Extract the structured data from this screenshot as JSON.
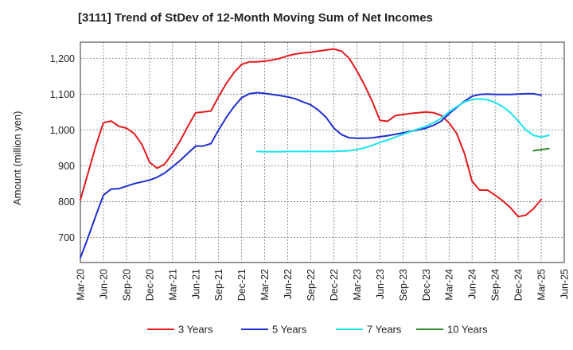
{
  "chart_data": {
    "type": "line",
    "title": "[3111]  Trend of StDev of 12-Month Moving Sum of Net Incomes",
    "ylabel": "Amount (million yen)",
    "xlabel": "",
    "ylim": [
      630,
      1245
    ],
    "yticks": [
      700,
      800,
      900,
      1000,
      1100,
      1200
    ],
    "ytick_labels": [
      "700",
      "800",
      "900",
      "1,000",
      "1,100",
      "1,200"
    ],
    "xticks": [
      "Mar-20",
      "Jun-20",
      "Sep-20",
      "Dec-20",
      "Mar-21",
      "Jun-21",
      "Sep-21",
      "Dec-21",
      "Mar-22",
      "Jun-22",
      "Sep-22",
      "Dec-22",
      "Mar-23",
      "Jun-23",
      "Sep-23",
      "Dec-23",
      "Mar-24",
      "Jun-24",
      "Sep-24",
      "Dec-24",
      "Mar-25",
      "Jun-25"
    ],
    "x_range": [
      "Mar-20",
      "Jun-25"
    ],
    "grid": true,
    "legend_position": "bottom",
    "series": [
      {
        "name": "3 Years",
        "color": "#e31a1c",
        "points": [
          [
            "Mar-20",
            805
          ],
          [
            "Apr-20",
            880
          ],
          [
            "May-20",
            955
          ],
          [
            "Jun-20",
            1020
          ],
          [
            "Jul-20",
            1025
          ],
          [
            "Aug-20",
            1010
          ],
          [
            "Sep-20",
            1005
          ],
          [
            "Oct-20",
            990
          ],
          [
            "Nov-20",
            960
          ],
          [
            "Dec-20",
            910
          ],
          [
            "Jan-21",
            893
          ],
          [
            "Feb-21",
            905
          ],
          [
            "Mar-21",
            935
          ],
          [
            "Apr-21",
            970
          ],
          [
            "May-21",
            1010
          ],
          [
            "Jun-21",
            1048
          ],
          [
            "Jul-21",
            1050
          ],
          [
            "Aug-21",
            1053
          ],
          [
            "Sep-21",
            1093
          ],
          [
            "Oct-21",
            1130
          ],
          [
            "Nov-21",
            1160
          ],
          [
            "Dec-21",
            1183
          ],
          [
            "Jan-22",
            1190
          ],
          [
            "Feb-22",
            1190
          ],
          [
            "Mar-22",
            1192
          ],
          [
            "Apr-22",
            1195
          ],
          [
            "May-22",
            1200
          ],
          [
            "Jun-22",
            1207
          ],
          [
            "Jul-22",
            1212
          ],
          [
            "Aug-22",
            1215
          ],
          [
            "Sep-22",
            1217
          ],
          [
            "Oct-22",
            1220
          ],
          [
            "Nov-22",
            1223
          ],
          [
            "Dec-22",
            1226
          ],
          [
            "Jan-23",
            1220
          ],
          [
            "Feb-23",
            1200
          ],
          [
            "Mar-23",
            1165
          ],
          [
            "Apr-23",
            1125
          ],
          [
            "May-23",
            1080
          ],
          [
            "Jun-23",
            1027
          ],
          [
            "Jul-23",
            1024
          ],
          [
            "Aug-23",
            1040
          ],
          [
            "Sep-23",
            1043
          ],
          [
            "Oct-23",
            1046
          ],
          [
            "Nov-23",
            1048
          ],
          [
            "Dec-23",
            1050
          ],
          [
            "Jan-24",
            1048
          ],
          [
            "Feb-24",
            1040
          ],
          [
            "Mar-24",
            1020
          ],
          [
            "Apr-24",
            990
          ],
          [
            "May-24",
            935
          ],
          [
            "Jun-24",
            857
          ],
          [
            "Jul-24",
            832
          ],
          [
            "Aug-24",
            832
          ],
          [
            "Sep-24",
            818
          ],
          [
            "Oct-24",
            802
          ],
          [
            "Nov-24",
            783
          ],
          [
            "Dec-24",
            758
          ],
          [
            "Jan-25",
            762
          ],
          [
            "Feb-25",
            780
          ],
          [
            "Mar-25",
            806
          ]
        ]
      },
      {
        "name": "5 Years",
        "color": "#1f2fd1",
        "points": [
          [
            "Mar-20",
            643
          ],
          [
            "Apr-20",
            700
          ],
          [
            "May-20",
            760
          ],
          [
            "Jun-20",
            818
          ],
          [
            "Jul-20",
            835
          ],
          [
            "Aug-20",
            836
          ],
          [
            "Sep-20",
            843
          ],
          [
            "Oct-20",
            850
          ],
          [
            "Nov-20",
            855
          ],
          [
            "Dec-20",
            860
          ],
          [
            "Jan-21",
            868
          ],
          [
            "Feb-21",
            880
          ],
          [
            "Mar-21",
            897
          ],
          [
            "Apr-21",
            915
          ],
          [
            "May-21",
            935
          ],
          [
            "Jun-21",
            955
          ],
          [
            "Jul-21",
            955
          ],
          [
            "Aug-21",
            962
          ],
          [
            "Sep-21",
            1000
          ],
          [
            "Oct-21",
            1035
          ],
          [
            "Nov-21",
            1065
          ],
          [
            "Dec-21",
            1090
          ],
          [
            "Jan-22",
            1101
          ],
          [
            "Feb-22",
            1104
          ],
          [
            "Mar-22",
            1102
          ],
          [
            "Apr-22",
            1099
          ],
          [
            "May-22",
            1096
          ],
          [
            "Jun-22",
            1092
          ],
          [
            "Jul-22",
            1087
          ],
          [
            "Aug-22",
            1078
          ],
          [
            "Sep-22",
            1070
          ],
          [
            "Oct-22",
            1055
          ],
          [
            "Nov-22",
            1035
          ],
          [
            "Dec-22",
            1005
          ],
          [
            "Jan-23",
            987
          ],
          [
            "Feb-23",
            978
          ],
          [
            "Mar-23",
            977
          ],
          [
            "Apr-23",
            977
          ],
          [
            "May-23",
            978
          ],
          [
            "Jun-23",
            981
          ],
          [
            "Jul-23",
            984
          ],
          [
            "Aug-23",
            988
          ],
          [
            "Sep-23",
            992
          ],
          [
            "Oct-23",
            996
          ],
          [
            "Nov-23",
            1000
          ],
          [
            "Dec-23",
            1005
          ],
          [
            "Jan-24",
            1013
          ],
          [
            "Feb-24",
            1025
          ],
          [
            "Mar-24",
            1045
          ],
          [
            "Apr-24",
            1063
          ],
          [
            "May-24",
            1080
          ],
          [
            "Jun-24",
            1094
          ],
          [
            "Jul-24",
            1099
          ],
          [
            "Aug-24",
            1100
          ],
          [
            "Sep-24",
            1099
          ],
          [
            "Oct-24",
            1099
          ],
          [
            "Nov-24",
            1099
          ],
          [
            "Dec-24",
            1100
          ],
          [
            "Jan-25",
            1101
          ],
          [
            "Feb-25",
            1101
          ],
          [
            "Mar-25",
            1097
          ]
        ]
      },
      {
        "name": "7 Years",
        "color": "#1ee3ee",
        "points": [
          [
            "Feb-22",
            940
          ],
          [
            "Mar-22",
            939
          ],
          [
            "Apr-22",
            939
          ],
          [
            "May-22",
            939
          ],
          [
            "Jun-22",
            940
          ],
          [
            "Jul-22",
            940
          ],
          [
            "Aug-22",
            940
          ],
          [
            "Sep-22",
            940
          ],
          [
            "Oct-22",
            940
          ],
          [
            "Nov-22",
            940
          ],
          [
            "Dec-22",
            940
          ],
          [
            "Jan-23",
            941
          ],
          [
            "Feb-23",
            942
          ],
          [
            "Mar-23",
            945
          ],
          [
            "Apr-23",
            950
          ],
          [
            "May-23",
            957
          ],
          [
            "Jun-23",
            965
          ],
          [
            "Jul-23",
            972
          ],
          [
            "Aug-23",
            980
          ],
          [
            "Sep-23",
            988
          ],
          [
            "Oct-23",
            995
          ],
          [
            "Nov-23",
            1003
          ],
          [
            "Dec-23",
            1010
          ],
          [
            "Jan-24",
            1020
          ],
          [
            "Feb-24",
            1033
          ],
          [
            "Mar-24",
            1050
          ],
          [
            "Apr-24",
            1065
          ],
          [
            "May-24",
            1078
          ],
          [
            "Jun-24",
            1085
          ],
          [
            "Jul-24",
            1087
          ],
          [
            "Aug-24",
            1084
          ],
          [
            "Sep-24",
            1077
          ],
          [
            "Oct-24",
            1065
          ],
          [
            "Nov-24",
            1048
          ],
          [
            "Dec-24",
            1025
          ],
          [
            "Jan-25",
            1000
          ],
          [
            "Feb-25",
            985
          ],
          [
            "Mar-25",
            980
          ],
          [
            "Apr-25",
            985
          ]
        ]
      },
      {
        "name": "10 Years",
        "color": "#2a8a2a",
        "points": [
          [
            "Feb-25",
            942
          ],
          [
            "Mar-25",
            945
          ],
          [
            "Apr-25",
            948
          ]
        ]
      }
    ]
  }
}
